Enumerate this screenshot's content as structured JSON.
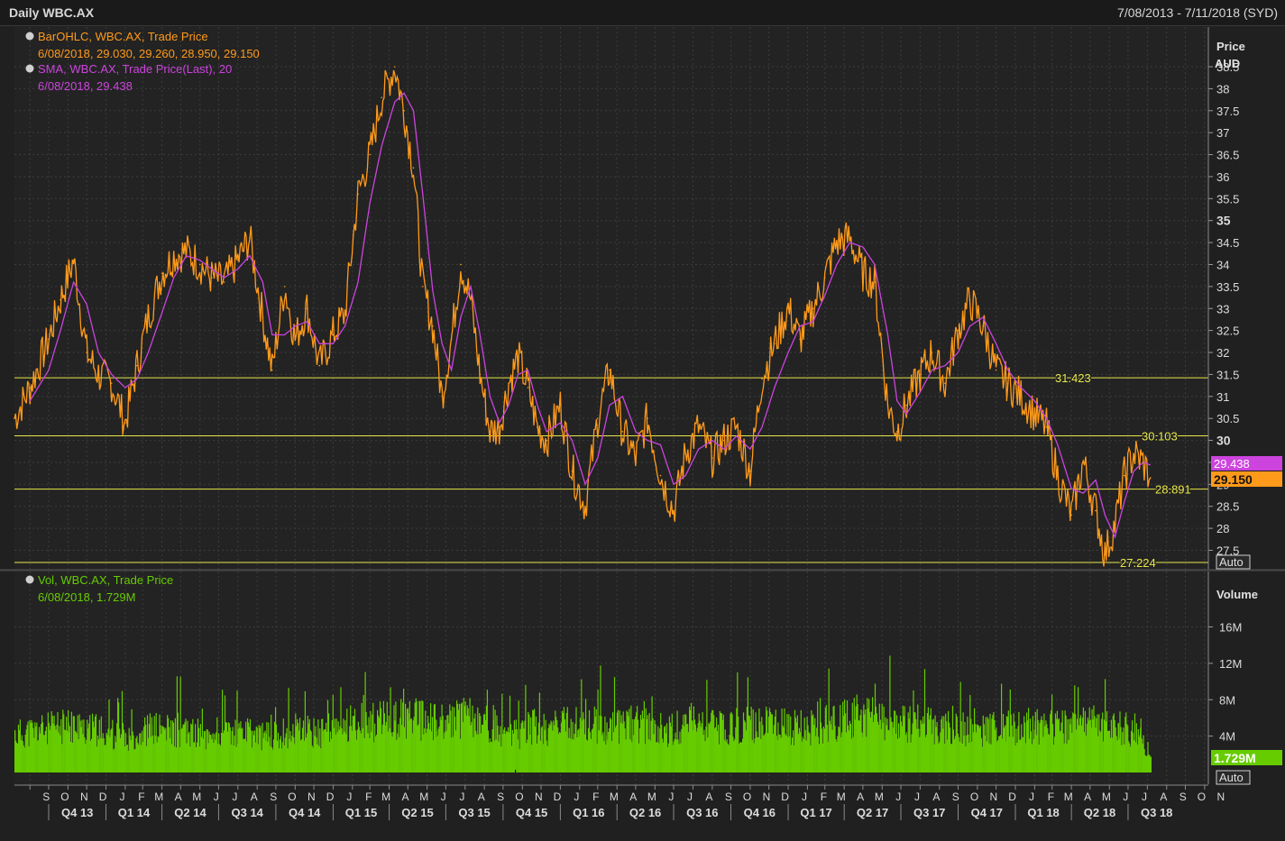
{
  "header": {
    "title": "Daily WBC.AX",
    "date_range": "7/08/2013 - 7/11/2018 (SYD)"
  },
  "price_panel": {
    "legend": [
      {
        "line1": "BarOHLC, WBC.AX, Trade Price",
        "line2": "6/08/2018, 29.030, 29.260, 28.950, 29.150",
        "color": "#ff9a1a"
      },
      {
        "line1": "SMA, WBC.AX, Trade Price(Last),  20",
        "line2": "6/08/2018, 29.438",
        "color": "#cc44dd"
      }
    ],
    "axis_title": "Price",
    "axis_unit": "AUD",
    "auto_label": "Auto",
    "last_sma_badge": "29.438",
    "last_price_badge": "29.150"
  },
  "volume_panel": {
    "legend": {
      "line1": "Vol, WBC.AX, Trade Price",
      "line2": "6/08/2018, 1.729M",
      "color": "#66cc00"
    },
    "axis_title": "Volume",
    "auto_label": "Auto",
    "last_volume_badge": "1.729M"
  },
  "colors": {
    "price": "#ff9a1a",
    "sma": "#cc44dd",
    "volume": "#66cc00",
    "hline": "#e8e84a",
    "grid": "#3c3c3c",
    "background": "#202020"
  },
  "chart_data": [
    {
      "type": "line",
      "name": "price",
      "series": [
        {
          "name": "BarOHLC, WBC.AX, Trade Price",
          "x": [
            "2013-08-07",
            "2013-09-01",
            "2013-10-01",
            "2013-10-20",
            "2013-11-10",
            "2013-12-01",
            "2013-12-20",
            "2014-01-10",
            "2014-02-01",
            "2014-02-20",
            "2014-03-10",
            "2014-04-01",
            "2014-04-20",
            "2014-05-10",
            "2014-06-01",
            "2014-06-20",
            "2014-07-10",
            "2014-08-01",
            "2014-08-20",
            "2014-09-10",
            "2014-09-25",
            "2014-10-15",
            "2014-11-01",
            "2014-11-20",
            "2014-12-10",
            "2015-01-01",
            "2015-01-20",
            "2015-02-10",
            "2015-03-01",
            "2015-03-20",
            "2015-04-10",
            "2015-04-25",
            "2015-05-10",
            "2015-05-25",
            "2015-06-10",
            "2015-06-25",
            "2015-07-10",
            "2015-07-25",
            "2015-08-10",
            "2015-08-25",
            "2015-09-10",
            "2015-09-25",
            "2015-10-10",
            "2015-10-25",
            "2015-11-10",
            "2015-11-25",
            "2015-12-10",
            "2016-01-01",
            "2016-01-20",
            "2016-02-10",
            "2016-03-01",
            "2016-03-20",
            "2016-04-10",
            "2016-05-01",
            "2016-05-20",
            "2016-06-10",
            "2016-07-01",
            "2016-07-20",
            "2016-08-10",
            "2016-09-01",
            "2016-09-20",
            "2016-10-10",
            "2016-11-01",
            "2016-11-20",
            "2016-12-10",
            "2017-01-01",
            "2017-01-20",
            "2017-02-10",
            "2017-03-01",
            "2017-03-20",
            "2017-04-10",
            "2017-05-01",
            "2017-05-20",
            "2017-06-10",
            "2017-06-25",
            "2017-07-10",
            "2017-08-01",
            "2017-08-20",
            "2017-09-10",
            "2017-10-01",
            "2017-10-20",
            "2017-11-10",
            "2017-12-01",
            "2017-12-20",
            "2018-01-10",
            "2018-02-01",
            "2018-02-20",
            "2018-03-10",
            "2018-04-01",
            "2018-04-20",
            "2018-05-10",
            "2018-05-25",
            "2018-06-10",
            "2018-06-25",
            "2018-07-10",
            "2018-07-25",
            "2018-08-06"
          ],
          "values": [
            30.5,
            31.2,
            32.3,
            33.2,
            34.1,
            32.0,
            31.5,
            31.3,
            30.4,
            31.7,
            32.8,
            33.8,
            34.2,
            34.3,
            34.0,
            33.7,
            33.6,
            34.1,
            34.6,
            32.8,
            31.6,
            33.5,
            32.3,
            33.0,
            31.7,
            32.4,
            32.9,
            35.6,
            36.5,
            37.8,
            38.5,
            37.5,
            36.2,
            33.5,
            32.6,
            31.0,
            32.3,
            34.0,
            33.2,
            31.5,
            30.2,
            30.3,
            31.3,
            31.9,
            31.2,
            30.3,
            30.0,
            30.8,
            29.3,
            28.5,
            30.5,
            31.6,
            30.2,
            29.6,
            30.5,
            29.2,
            28.4,
            29.7,
            30.3,
            29.6,
            30.0,
            30.3,
            29.3,
            31.4,
            32.2,
            33.0,
            32.3,
            33.0,
            33.7,
            34.5,
            34.6,
            33.8,
            33.6,
            30.8,
            30.2,
            30.8,
            31.5,
            32.0,
            31.3,
            32.5,
            33.2,
            32.6,
            31.6,
            31.3,
            31.0,
            30.6,
            30.3,
            29.2,
            28.3,
            29.5,
            28.4,
            27.4,
            28.1,
            29.2,
            29.7,
            29.5,
            29.15
          ]
        },
        {
          "name": "SMA, WBC.AX, Trade Price(Last),  20",
          "x": [
            "2013-09-01",
            "2013-10-01",
            "2013-10-20",
            "2013-11-10",
            "2013-12-01",
            "2013-12-20",
            "2014-01-10",
            "2014-02-01",
            "2014-02-20",
            "2014-03-10",
            "2014-04-01",
            "2014-04-20",
            "2014-05-10",
            "2014-06-01",
            "2014-06-20",
            "2014-07-10",
            "2014-08-01",
            "2014-08-20",
            "2014-09-10",
            "2014-09-25",
            "2014-10-15",
            "2014-11-01",
            "2014-11-20",
            "2014-12-10",
            "2015-01-01",
            "2015-01-20",
            "2015-02-10",
            "2015-03-01",
            "2015-03-20",
            "2015-04-10",
            "2015-04-25",
            "2015-05-10",
            "2015-05-25",
            "2015-06-10",
            "2015-06-25",
            "2015-07-10",
            "2015-07-25",
            "2015-08-10",
            "2015-08-25",
            "2015-09-10",
            "2015-09-25",
            "2015-10-10",
            "2015-10-25",
            "2015-11-10",
            "2015-11-25",
            "2015-12-10",
            "2016-01-01",
            "2016-01-20",
            "2016-02-10",
            "2016-03-01",
            "2016-03-20",
            "2016-04-10",
            "2016-05-01",
            "2016-05-20",
            "2016-06-10",
            "2016-07-01",
            "2016-07-20",
            "2016-08-10",
            "2016-09-01",
            "2016-09-20",
            "2016-10-10",
            "2016-11-01",
            "2016-11-20",
            "2016-12-10",
            "2017-01-01",
            "2017-01-20",
            "2017-02-10",
            "2017-03-01",
            "2017-03-20",
            "2017-04-10",
            "2017-05-01",
            "2017-05-20",
            "2017-06-10",
            "2017-06-25",
            "2017-07-10",
            "2017-08-01",
            "2017-08-20",
            "2017-09-10",
            "2017-10-01",
            "2017-10-20",
            "2017-11-10",
            "2017-12-01",
            "2017-12-20",
            "2018-01-10",
            "2018-02-01",
            "2018-02-20",
            "2018-03-10",
            "2018-04-01",
            "2018-04-20",
            "2018-05-10",
            "2018-05-25",
            "2018-06-10",
            "2018-06-25",
            "2018-07-10",
            "2018-07-25",
            "2018-08-06"
          ],
          "values": [
            30.9,
            31.6,
            32.5,
            33.6,
            33.1,
            32.0,
            31.5,
            31.2,
            31.4,
            32.0,
            32.9,
            33.7,
            34.2,
            34.1,
            33.9,
            33.7,
            33.9,
            34.2,
            33.6,
            32.4,
            32.4,
            32.6,
            32.7,
            32.2,
            32.2,
            32.6,
            33.6,
            35.4,
            36.7,
            37.7,
            37.9,
            37.5,
            35.6,
            33.4,
            32.2,
            31.6,
            32.8,
            33.5,
            32.4,
            31.0,
            30.4,
            30.8,
            31.5,
            31.6,
            30.8,
            30.2,
            30.4,
            30.0,
            29.0,
            29.6,
            30.8,
            31.0,
            30.2,
            30.0,
            29.9,
            29.0,
            29.2,
            29.8,
            30.0,
            29.8,
            30.1,
            29.8,
            30.3,
            31.2,
            32.0,
            32.6,
            32.7,
            33.3,
            34.0,
            34.5,
            34.4,
            34.0,
            32.4,
            30.9,
            30.6,
            31.1,
            31.6,
            31.7,
            32.0,
            32.6,
            32.8,
            32.2,
            31.6,
            31.2,
            30.9,
            30.5,
            29.9,
            28.9,
            28.8,
            29.1,
            28.3,
            27.8,
            28.6,
            29.3,
            29.5,
            29.44
          ]
        }
      ],
      "horizontal_lines": [
        31.423,
        30.103,
        28.891,
        27.224
      ],
      "yticks": [
        "38.5",
        "38",
        "37.5",
        "37",
        "36.5",
        "36",
        "35.5",
        "35",
        "34.5",
        "34",
        "33.5",
        "33",
        "32.5",
        "32",
        "31.5",
        "31",
        "30.5",
        "30",
        "29.5",
        "29",
        "28.5",
        "28",
        "27.5"
      ],
      "ylim": [
        27.1,
        39.3
      ],
      "xlim": [
        "2013-08-07",
        "2018-11-07"
      ],
      "grid": true
    },
    {
      "type": "bar",
      "name": "volume",
      "series": [
        {
          "name": "Vol, WBC.AX, Trade Price",
          "x": [
            "2013-08-07",
            "2013-09-15",
            "2013-11-01",
            "2013-12-15",
            "2014-02-01",
            "2014-03-15",
            "2014-05-01",
            "2014-06-15",
            "2014-08-01",
            "2014-09-15",
            "2014-11-01",
            "2014-12-15",
            "2015-02-01",
            "2015-03-15",
            "2015-05-01",
            "2015-06-15",
            "2015-08-01",
            "2015-09-15",
            "2015-10-20",
            "2015-11-01",
            "2015-12-15",
            "2016-02-01",
            "2016-03-15",
            "2016-05-01",
            "2016-06-15",
            "2016-08-01",
            "2016-09-15",
            "2016-11-01",
            "2016-12-15",
            "2017-02-01",
            "2017-03-15",
            "2017-05-01",
            "2017-06-15",
            "2017-08-01",
            "2017-09-15",
            "2017-11-01",
            "2017-12-15",
            "2018-02-01",
            "2018-03-15",
            "2018-05-01",
            "2018-06-15",
            "2018-07-20",
            "2018-08-06"
          ],
          "values": [
            4.5,
            5.0,
            5.5,
            5.0,
            4.2,
            5.2,
            4.8,
            4.5,
            4.8,
            4.3,
            5.0,
            4.6,
            6.2,
            6.0,
            6.5,
            5.8,
            6.4,
            5.8,
            0.3,
            5.6,
            5.2,
            6.0,
            5.5,
            5.8,
            5.0,
            5.6,
            5.2,
            5.8,
            5.5,
            5.2,
            6.0,
            6.8,
            5.6,
            5.8,
            5.2,
            5.0,
            5.2,
            5.6,
            5.5,
            5.8,
            5.4,
            4.9,
            1.729
          ]
        }
      ],
      "yticks": [
        "16M",
        "12M",
        "8M",
        "4M"
      ],
      "ylim": [
        0,
        21.5
      ],
      "grid": true
    }
  ],
  "x_axis": {
    "months": [
      "S",
      "O",
      "N",
      "D",
      "J",
      "F",
      "M",
      "A",
      "M",
      "J",
      "J",
      "A",
      "S",
      "O",
      "N",
      "D",
      "J",
      "F",
      "M",
      "A",
      "M",
      "J",
      "J",
      "A",
      "S",
      "O",
      "N",
      "D",
      "J",
      "F",
      "M",
      "A",
      "M",
      "J",
      "J",
      "A",
      "S",
      "O",
      "N",
      "D",
      "J",
      "F",
      "M",
      "A",
      "M",
      "J",
      "J",
      "A",
      "S",
      "O",
      "N",
      "D",
      "J",
      "F",
      "M",
      "A",
      "M",
      "J",
      "J",
      "A",
      "S",
      "O",
      "N"
    ],
    "quarters": [
      "Q4 13",
      "Q1 14",
      "Q2 14",
      "Q3 14",
      "Q4 14",
      "Q1 15",
      "Q2 15",
      "Q3 15",
      "Q4 15",
      "Q1 16",
      "Q2 16",
      "Q3 16",
      "Q4 16",
      "Q1 17",
      "Q2 17",
      "Q3 17",
      "Q4 17",
      "Q1 18",
      "Q2 18",
      "Q3 18"
    ]
  }
}
